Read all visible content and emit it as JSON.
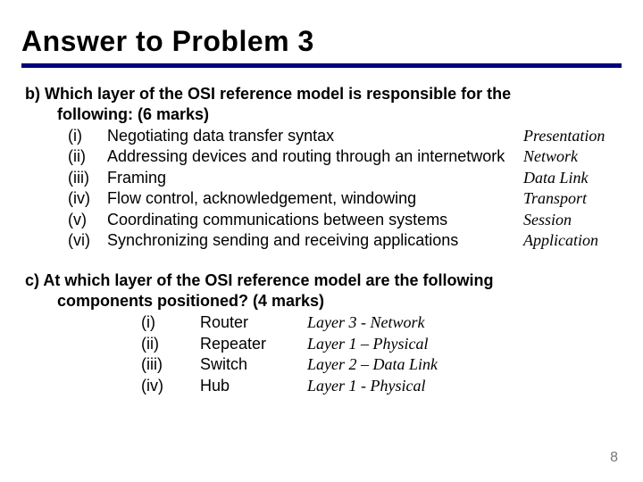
{
  "title": "Answer to Problem 3",
  "section_b": {
    "label": "b)",
    "intro_line1": "Which layer of the OSI reference model is responsible for the",
    "intro_line2": "following: (6 marks)",
    "items": [
      {
        "num": "(i)",
        "desc": "Negotiating data transfer syntax",
        "ans": "Presentation"
      },
      {
        "num": "(ii)",
        "desc": "Addressing devices and routing through an internetwork",
        "ans": "Network"
      },
      {
        "num": "(iii)",
        "desc": "Framing",
        "ans": "Data Link"
      },
      {
        "num": "(iv)",
        "desc": "Flow control, acknowledgement, windowing",
        "ans": "Transport"
      },
      {
        "num": "(v)",
        "desc": "Coordinating communications between systems",
        "ans": "Session"
      },
      {
        "num": "(vi)",
        "desc": "Synchronizing sending and receiving applications",
        "ans": "Application"
      }
    ]
  },
  "section_c": {
    "label": "c)",
    "intro_line1": "At which layer of the OSI reference model are the following",
    "intro_line2": "components positioned? (4 marks)",
    "items": [
      {
        "num": "(i)",
        "comp": "Router",
        "layer": "Layer 3 - Network"
      },
      {
        "num": "(ii)",
        "comp": "Repeater",
        "layer": "Layer 1 – Physical"
      },
      {
        "num": "(iii)",
        "comp": "Switch",
        "layer": "Layer 2 – Data Link"
      },
      {
        "num": "(iv)",
        "comp": "Hub",
        "layer": "Layer 1 - Physical"
      }
    ]
  },
  "page_number": "8"
}
